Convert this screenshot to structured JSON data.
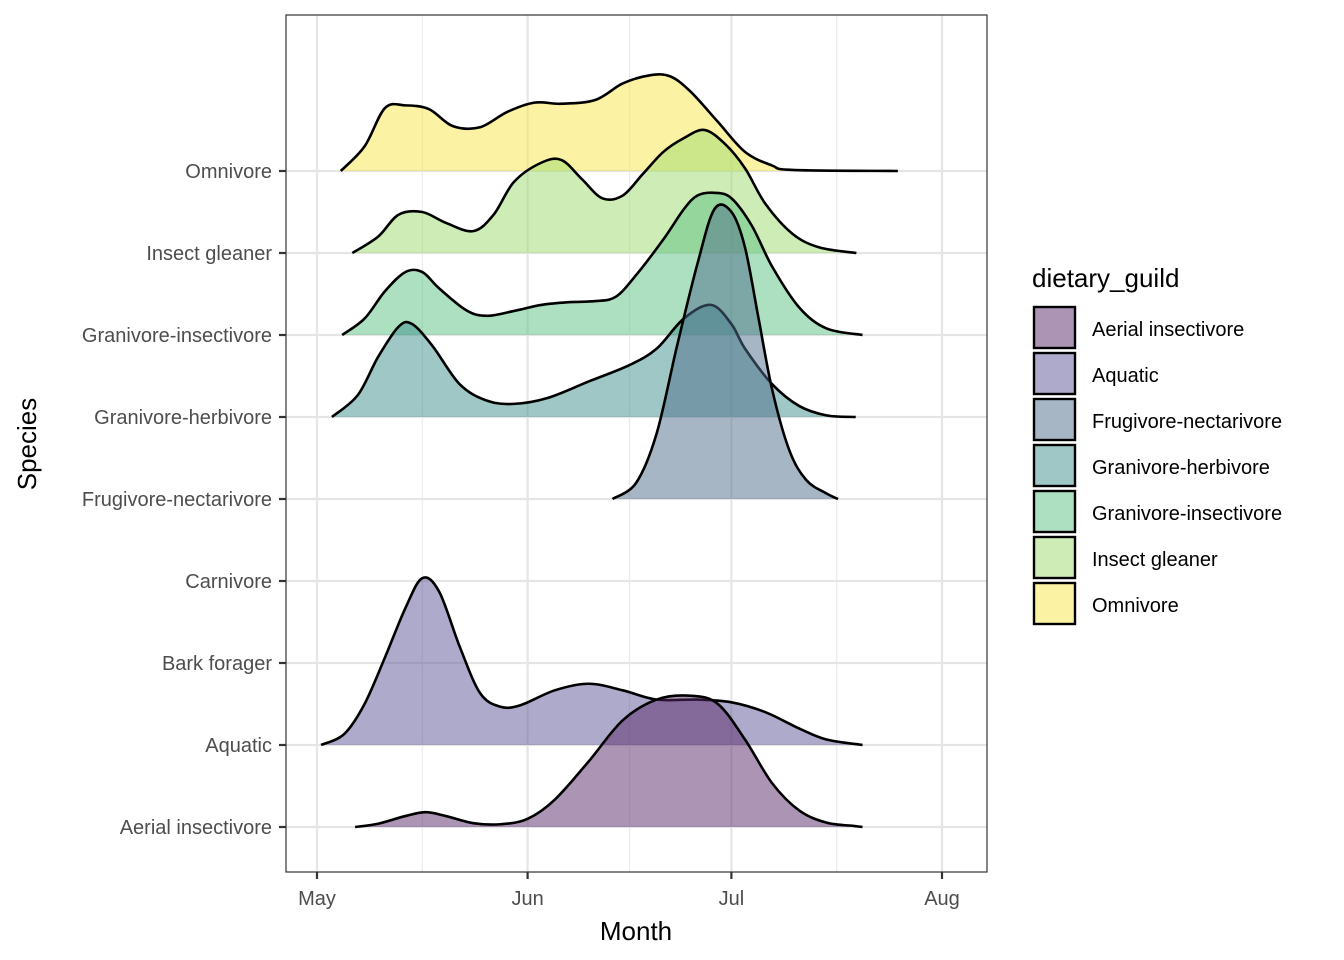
{
  "chart_data": {
    "type": "ridgeline",
    "title": "",
    "xlabel": "Month",
    "ylabel": "Species",
    "x_ticks": [
      {
        "label": "May",
        "day": 0
      },
      {
        "label": "Jun",
        "day": 31
      },
      {
        "label": "Jul",
        "day": 61
      },
      {
        "label": "Aug",
        "day": 92
      }
    ],
    "x_minor_days": [
      15.5,
      46,
      76.5
    ],
    "xlim_days": [
      -4.6,
      98.5
    ],
    "x_origin": "May 1",
    "y_categories": [
      "Aerial insectivore",
      "Aquatic",
      "Bark forager",
      "Carnivore",
      "Frugivore-nectarivore",
      "Granivore-herbivore",
      "Granivore-insectivore",
      "Insect gleaner",
      "Omnivore"
    ],
    "grid": true,
    "legend": {
      "title": "dietary_guild",
      "position": "right",
      "entries": [
        {
          "label": "Aerial insectivore",
          "color": "#5a2a6b"
        },
        {
          "label": "Aquatic",
          "color": "#5d5597"
        },
        {
          "label": "Frugivore-nectarivore",
          "color": "#4d6d8c"
        },
        {
          "label": "Granivore-herbivore",
          "color": "#3e8f8c"
        },
        {
          "label": "Granivore-insectivore",
          "color": "#5cbf84"
        },
        {
          "label": "Insect gleaner",
          "color": "#9edb6e"
        },
        {
          "label": "Omnivore",
          "color": "#f7e54a"
        }
      ]
    },
    "fill_alpha": 0.5,
    "series": [
      {
        "name": "Aerial insectivore",
        "row": 0,
        "color": "#5a2a6b",
        "points": [
          [
            5.6,
            0
          ],
          [
            9,
            0.06
          ],
          [
            13,
            0.2
          ],
          [
            16,
            0.27
          ],
          [
            19,
            0.2
          ],
          [
            23,
            0.07
          ],
          [
            27,
            0.05
          ],
          [
            31,
            0.15
          ],
          [
            35,
            0.5
          ],
          [
            40,
            1.2
          ],
          [
            45,
            1.95
          ],
          [
            50,
            2.33
          ],
          [
            55,
            2.4
          ],
          [
            59,
            2.25
          ],
          [
            63,
            1.6
          ],
          [
            67,
            0.8
          ],
          [
            71,
            0.3
          ],
          [
            75,
            0.08
          ],
          [
            79,
            0.02
          ],
          [
            80.3,
            0
          ]
        ]
      },
      {
        "name": "Aquatic",
        "row": 1,
        "color": "#5d5597",
        "points": [
          [
            0.6,
            0
          ],
          [
            4,
            0.2
          ],
          [
            7,
            0.75
          ],
          [
            10,
            1.6
          ],
          [
            13,
            2.5
          ],
          [
            15.5,
            3.05
          ],
          [
            18,
            2.8
          ],
          [
            21,
            1.8
          ],
          [
            24,
            0.95
          ],
          [
            27,
            0.7
          ],
          [
            30,
            0.73
          ],
          [
            35,
            1.0
          ],
          [
            40,
            1.12
          ],
          [
            45,
            1.0
          ],
          [
            50,
            0.83
          ],
          [
            56,
            0.83
          ],
          [
            61,
            0.78
          ],
          [
            66,
            0.6
          ],
          [
            71,
            0.3
          ],
          [
            75,
            0.1
          ],
          [
            80.3,
            0
          ]
        ]
      },
      {
        "name": "Frugivore-nectarivore",
        "row": 4,
        "color": "#4d6d8c",
        "points": [
          [
            43.5,
            0
          ],
          [
            47,
            0.3
          ],
          [
            50,
            1.2
          ],
          [
            53,
            2.8
          ],
          [
            56,
            4.3
          ],
          [
            58.5,
            5.3
          ],
          [
            61,
            5.25
          ],
          [
            63,
            4.6
          ],
          [
            65,
            3.3
          ],
          [
            67,
            2.0
          ],
          [
            69.5,
            0.9
          ],
          [
            72,
            0.35
          ],
          [
            75,
            0.1
          ],
          [
            76.7,
            0
          ]
        ]
      },
      {
        "name": "Granivore-herbivore",
        "row": 5,
        "color": "#3e8f8c",
        "points": [
          [
            2.2,
            0
          ],
          [
            6,
            0.4
          ],
          [
            9,
            1.1
          ],
          [
            12,
            1.65
          ],
          [
            14,
            1.7
          ],
          [
            17,
            1.3
          ],
          [
            21,
            0.6
          ],
          [
            25,
            0.3
          ],
          [
            29,
            0.24
          ],
          [
            34,
            0.35
          ],
          [
            40,
            0.65
          ],
          [
            46,
            0.95
          ],
          [
            50,
            1.25
          ],
          [
            54,
            1.8
          ],
          [
            58,
            2.05
          ],
          [
            61,
            1.7
          ],
          [
            63,
            1.25
          ],
          [
            67,
            0.6
          ],
          [
            71,
            0.2
          ],
          [
            75,
            0.03
          ],
          [
            79.3,
            0
          ]
        ]
      },
      {
        "name": "Granivore-insectivore",
        "row": 6,
        "color": "#5cbf84",
        "points": [
          [
            3.7,
            0
          ],
          [
            7,
            0.3
          ],
          [
            10,
            0.8
          ],
          [
            13,
            1.15
          ],
          [
            15.5,
            1.15
          ],
          [
            18,
            0.85
          ],
          [
            22,
            0.45
          ],
          [
            25,
            0.35
          ],
          [
            29,
            0.44
          ],
          [
            33,
            0.55
          ],
          [
            37,
            0.6
          ],
          [
            41,
            0.62
          ],
          [
            44,
            0.7
          ],
          [
            47,
            1.1
          ],
          [
            51,
            1.75
          ],
          [
            54,
            2.3
          ],
          [
            56,
            2.55
          ],
          [
            58.5,
            2.6
          ],
          [
            61,
            2.5
          ],
          [
            64,
            2.0
          ],
          [
            67,
            1.25
          ],
          [
            71,
            0.5
          ],
          [
            75,
            0.12
          ],
          [
            80.3,
            0
          ]
        ]
      },
      {
        "name": "Insect gleaner",
        "row": 7,
        "color": "#9edb6e",
        "points": [
          [
            5.2,
            0
          ],
          [
            9,
            0.3
          ],
          [
            12,
            0.7
          ],
          [
            15.5,
            0.75
          ],
          [
            19,
            0.55
          ],
          [
            23,
            0.4
          ],
          [
            26,
            0.7
          ],
          [
            29,
            1.3
          ],
          [
            33,
            1.65
          ],
          [
            36,
            1.7
          ],
          [
            39,
            1.35
          ],
          [
            42,
            1.0
          ],
          [
            45,
            1.05
          ],
          [
            48,
            1.45
          ],
          [
            51,
            1.85
          ],
          [
            54,
            2.1
          ],
          [
            57,
            2.25
          ],
          [
            60,
            2.0
          ],
          [
            63,
            1.55
          ],
          [
            66,
            0.9
          ],
          [
            70,
            0.35
          ],
          [
            74,
            0.1
          ],
          [
            79.4,
            0
          ]
        ]
      },
      {
        "name": "Omnivore",
        "row": 8,
        "color": "#f7e54a",
        "points": [
          [
            3.5,
            0
          ],
          [
            7,
            0.45
          ],
          [
            10,
            1.15
          ],
          [
            13,
            1.2
          ],
          [
            16.5,
            1.13
          ],
          [
            20,
            0.82
          ],
          [
            24,
            0.8
          ],
          [
            28,
            1.08
          ],
          [
            32,
            1.25
          ],
          [
            36,
            1.23
          ],
          [
            41,
            1.3
          ],
          [
            45,
            1.6
          ],
          [
            49,
            1.75
          ],
          [
            52,
            1.73
          ],
          [
            55,
            1.45
          ],
          [
            59,
            0.9
          ],
          [
            63,
            0.35
          ],
          [
            67,
            0.1
          ],
          [
            70,
            0.02
          ],
          [
            85.5,
            0
          ]
        ]
      }
    ],
    "series_overlay": [
      {
        "name": "Omnivore-secondary-bump",
        "row": 8,
        "color": "#f7e54a",
        "points": []
      }
    ]
  }
}
